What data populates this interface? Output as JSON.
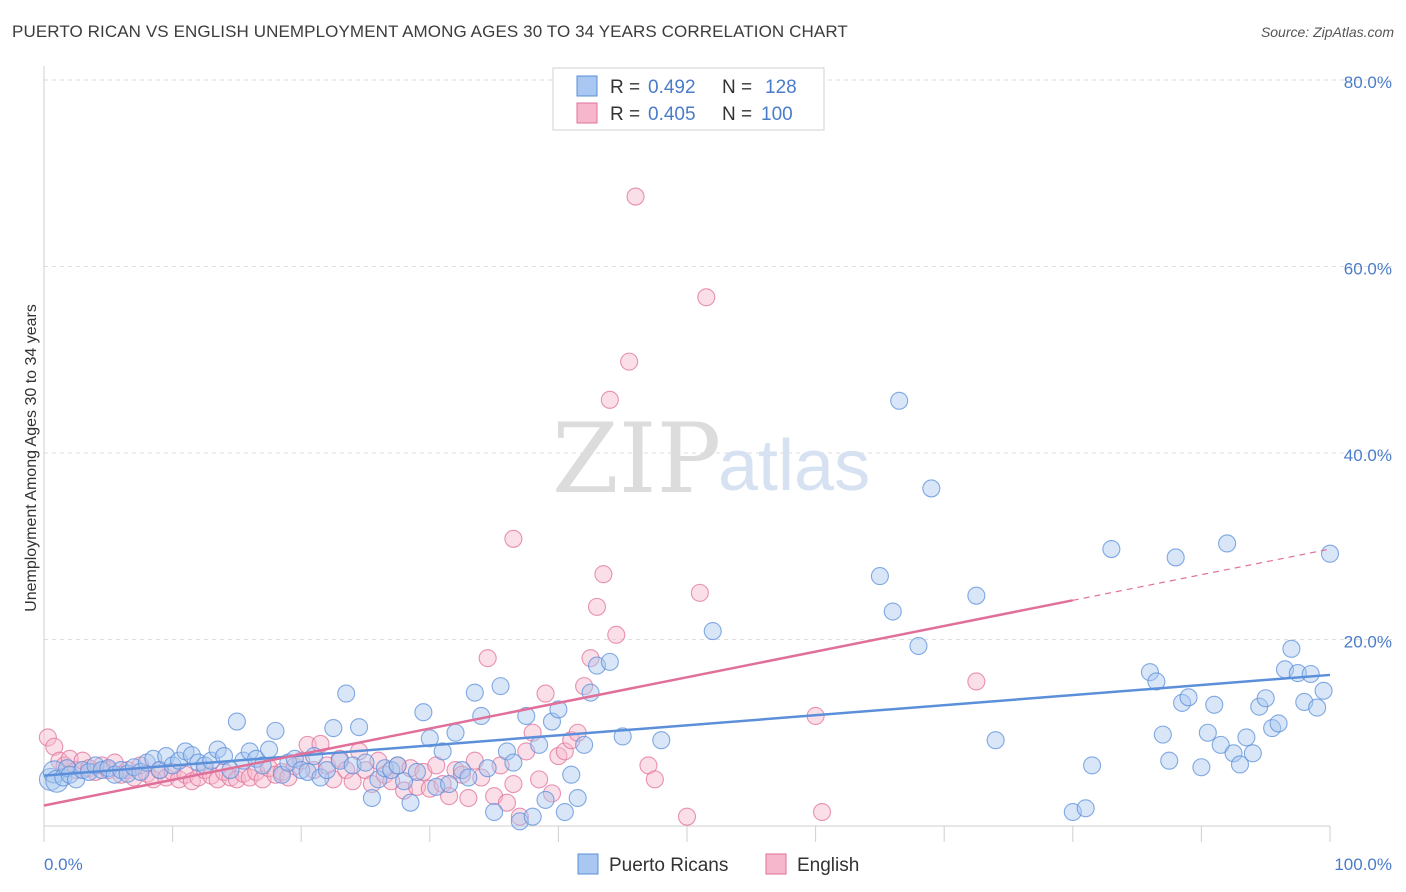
{
  "title": "PUERTO RICAN VS ENGLISH UNEMPLOYMENT AMONG AGES 30 TO 34 YEARS CORRELATION CHART",
  "source": "Source: ZipAtlas.com",
  "watermark": {
    "zip": "ZIP",
    "atlas": "atlas"
  },
  "legend_top": [
    {
      "r_label": "R =",
      "r_value": "0.492",
      "n_label": "N =",
      "n_value": "128"
    },
    {
      "r_label": "R =",
      "r_value": "0.405",
      "n_label": "N =",
      "n_value": "100"
    }
  ],
  "chart_data": {
    "type": "scatter",
    "xlabel": "",
    "ylabel": "Unemployment Among Ages 30 to 34 years",
    "xlim": [
      0,
      100
    ],
    "ylim": [
      0,
      80
    ],
    "x_tick_labels": [
      "0.0%",
      "100.0%"
    ],
    "y_ticks": [
      20,
      40,
      60,
      80
    ],
    "y_tick_labels": [
      "20.0%",
      "40.0%",
      "60.0%",
      "80.0%"
    ],
    "grid": true,
    "legend_position": "bottom",
    "series": [
      {
        "name": "Puerto Ricans",
        "color": "#5b8fd9",
        "fill": "#a9c7f0",
        "trend": {
          "x0": 0,
          "y0": 5.4,
          "x1": 100,
          "y1": 16.2,
          "dashed_from": null
        },
        "points": [
          [
            0.5,
            5.0
          ],
          [
            0.8,
            5.8
          ],
          [
            1.0,
            4.8
          ],
          [
            1.5,
            5.2
          ],
          [
            1.8,
            6.2
          ],
          [
            2.0,
            5.5
          ],
          [
            2.5,
            5.0
          ],
          [
            3.0,
            6.0
          ],
          [
            3.5,
            5.8
          ],
          [
            4.0,
            6.5
          ],
          [
            4.5,
            6.0
          ],
          [
            5.0,
            6.2
          ],
          [
            5.5,
            5.5
          ],
          [
            6.0,
            6.0
          ],
          [
            6.5,
            5.6
          ],
          [
            7.0,
            6.3
          ],
          [
            7.5,
            5.8
          ],
          [
            8.0,
            6.8
          ],
          [
            8.5,
            7.2
          ],
          [
            9.0,
            6.0
          ],
          [
            9.5,
            7.5
          ],
          [
            10.0,
            6.5
          ],
          [
            10.5,
            7.0
          ],
          [
            11.0,
            8.0
          ],
          [
            11.5,
            7.6
          ],
          [
            12.0,
            6.8
          ],
          [
            12.5,
            6.5
          ],
          [
            13.0,
            7.0
          ],
          [
            13.5,
            8.2
          ],
          [
            14.0,
            7.5
          ],
          [
            14.5,
            6.0
          ],
          [
            15.0,
            11.2
          ],
          [
            15.5,
            7.0
          ],
          [
            16.0,
            8.0
          ],
          [
            16.5,
            7.2
          ],
          [
            17.0,
            6.5
          ],
          [
            17.5,
            8.2
          ],
          [
            18.0,
            10.2
          ],
          [
            18.5,
            5.5
          ],
          [
            19.0,
            6.8
          ],
          [
            19.5,
            7.2
          ],
          [
            20.0,
            6.0
          ],
          [
            20.5,
            5.8
          ],
          [
            21.0,
            7.5
          ],
          [
            21.5,
            5.2
          ],
          [
            22.0,
            6.0
          ],
          [
            22.5,
            10.5
          ],
          [
            23.0,
            7.0
          ],
          [
            23.5,
            14.2
          ],
          [
            24.0,
            6.5
          ],
          [
            24.5,
            10.6
          ],
          [
            25.0,
            6.8
          ],
          [
            25.5,
            3.0
          ],
          [
            26.0,
            5.0
          ],
          [
            26.5,
            6.2
          ],
          [
            27.0,
            6.0
          ],
          [
            27.5,
            6.5
          ],
          [
            28.0,
            4.8
          ],
          [
            28.5,
            2.5
          ],
          [
            29.0,
            5.8
          ],
          [
            29.5,
            12.2
          ],
          [
            30.0,
            9.4
          ],
          [
            30.5,
            4.2
          ],
          [
            31.0,
            8.0
          ],
          [
            31.5,
            4.5
          ],
          [
            32.0,
            10.0
          ],
          [
            32.5,
            6.0
          ],
          [
            33.0,
            5.2
          ],
          [
            33.5,
            14.3
          ],
          [
            34.0,
            11.8
          ],
          [
            34.5,
            6.2
          ],
          [
            35.0,
            1.5
          ],
          [
            35.5,
            15.0
          ],
          [
            36.0,
            8.0
          ],
          [
            36.5,
            6.8
          ],
          [
            37.0,
            0.5
          ],
          [
            37.5,
            11.8
          ],
          [
            38.0,
            1.0
          ],
          [
            38.5,
            8.7
          ],
          [
            39.0,
            2.8
          ],
          [
            39.5,
            11.2
          ],
          [
            40.0,
            12.5
          ],
          [
            40.5,
            1.5
          ],
          [
            41.0,
            5.5
          ],
          [
            41.5,
            3.0
          ],
          [
            42.0,
            8.7
          ],
          [
            42.5,
            14.3
          ],
          [
            43.0,
            17.2
          ],
          [
            44.0,
            17.6
          ],
          [
            45.0,
            9.6
          ],
          [
            48.0,
            9.2
          ],
          [
            52.0,
            20.9
          ],
          [
            65.0,
            26.8
          ],
          [
            66.0,
            23.0
          ],
          [
            66.5,
            45.6
          ],
          [
            68.0,
            19.3
          ],
          [
            69.0,
            36.2
          ],
          [
            72.5,
            24.7
          ],
          [
            74.0,
            9.2
          ],
          [
            80.0,
            1.5
          ],
          [
            81.0,
            1.9
          ],
          [
            81.5,
            6.5
          ],
          [
            83.0,
            29.7
          ],
          [
            86.0,
            16.5
          ],
          [
            86.5,
            15.5
          ],
          [
            87.0,
            9.8
          ],
          [
            87.5,
            7.0
          ],
          [
            88.0,
            28.8
          ],
          [
            88.5,
            13.2
          ],
          [
            89.0,
            13.8
          ],
          [
            90.0,
            6.3
          ],
          [
            90.5,
            10.0
          ],
          [
            91.0,
            13.0
          ],
          [
            91.5,
            8.7
          ],
          [
            92.0,
            30.3
          ],
          [
            92.5,
            7.8
          ],
          [
            93.0,
            6.6
          ],
          [
            93.5,
            9.5
          ],
          [
            94.0,
            7.8
          ],
          [
            94.5,
            12.8
          ],
          [
            95.0,
            13.7
          ],
          [
            95.5,
            10.5
          ],
          [
            96.0,
            11.0
          ],
          [
            96.5,
            16.8
          ],
          [
            97.0,
            19.0
          ],
          [
            97.5,
            16.4
          ],
          [
            98.0,
            13.3
          ],
          [
            98.5,
            16.3
          ],
          [
            99.0,
            12.7
          ],
          [
            99.5,
            14.5
          ],
          [
            100.0,
            29.2
          ]
        ]
      },
      {
        "name": "English",
        "color": "#e0709a",
        "fill": "#f6b7cd",
        "trend": {
          "x0": 0,
          "y0": 2.2,
          "x1": 100,
          "y1": 29.7,
          "dashed_from": 80
        },
        "points": [
          [
            0.3,
            9.5
          ],
          [
            0.8,
            8.5
          ],
          [
            1.2,
            7.0
          ],
          [
            1.6,
            6.5
          ],
          [
            2.0,
            7.2
          ],
          [
            2.5,
            6.0
          ],
          [
            3.0,
            7.0
          ],
          [
            3.5,
            6.2
          ],
          [
            4.0,
            5.8
          ],
          [
            4.5,
            6.5
          ],
          [
            5.0,
            6.0
          ],
          [
            5.5,
            6.8
          ],
          [
            6.0,
            5.5
          ],
          [
            6.5,
            6.0
          ],
          [
            7.0,
            5.2
          ],
          [
            7.5,
            6.5
          ],
          [
            8.0,
            5.6
          ],
          [
            8.5,
            5.0
          ],
          [
            9.0,
            6.0
          ],
          [
            9.5,
            5.2
          ],
          [
            10.0,
            5.8
          ],
          [
            10.5,
            5.0
          ],
          [
            11.0,
            5.5
          ],
          [
            11.5,
            4.8
          ],
          [
            12.0,
            5.2
          ],
          [
            12.5,
            6.0
          ],
          [
            13.0,
            5.4
          ],
          [
            13.5,
            5.0
          ],
          [
            14.0,
            5.8
          ],
          [
            14.5,
            5.2
          ],
          [
            15.0,
            5.0
          ],
          [
            15.5,
            5.6
          ],
          [
            16.0,
            5.2
          ],
          [
            16.5,
            5.8
          ],
          [
            17.0,
            5.0
          ],
          [
            17.5,
            6.2
          ],
          [
            18.0,
            5.5
          ],
          [
            18.5,
            5.8
          ],
          [
            19.0,
            5.2
          ],
          [
            19.5,
            6.4
          ],
          [
            20.0,
            7.0
          ],
          [
            20.5,
            8.7
          ],
          [
            21.0,
            6.0
          ],
          [
            21.5,
            8.8
          ],
          [
            22.0,
            6.5
          ],
          [
            22.5,
            5.0
          ],
          [
            23.0,
            7.2
          ],
          [
            23.5,
            6.0
          ],
          [
            24.0,
            4.8
          ],
          [
            24.5,
            8.0
          ],
          [
            25.0,
            6.0
          ],
          [
            25.5,
            4.5
          ],
          [
            26.0,
            7.0
          ],
          [
            26.5,
            5.5
          ],
          [
            27.0,
            4.8
          ],
          [
            27.5,
            6.5
          ],
          [
            28.0,
            3.8
          ],
          [
            28.5,
            6.2
          ],
          [
            29.0,
            4.2
          ],
          [
            29.5,
            5.8
          ],
          [
            30.0,
            4.0
          ],
          [
            30.5,
            6.5
          ],
          [
            31.0,
            4.5
          ],
          [
            31.5,
            3.2
          ],
          [
            32.0,
            6.0
          ],
          [
            32.5,
            5.5
          ],
          [
            33.0,
            3.0
          ],
          [
            33.5,
            7.0
          ],
          [
            34.0,
            5.2
          ],
          [
            34.5,
            18.0
          ],
          [
            35.0,
            3.2
          ],
          [
            35.5,
            6.5
          ],
          [
            36.0,
            2.5
          ],
          [
            36.5,
            4.5
          ],
          [
            37.0,
            1.0
          ],
          [
            37.5,
            8.0
          ],
          [
            38.0,
            10.0
          ],
          [
            38.5,
            5.0
          ],
          [
            39.0,
            14.2
          ],
          [
            39.5,
            3.5
          ],
          [
            40.0,
            7.5
          ],
          [
            40.5,
            8.0
          ],
          [
            41.0,
            9.2
          ],
          [
            41.5,
            10.0
          ],
          [
            42.0,
            15.0
          ],
          [
            42.5,
            18.0
          ],
          [
            43.0,
            23.5
          ],
          [
            43.5,
            27.0
          ],
          [
            44.0,
            45.7
          ],
          [
            44.5,
            20.5
          ],
          [
            45.5,
            49.8
          ],
          [
            46.0,
            67.5
          ],
          [
            47.0,
            6.5
          ],
          [
            47.5,
            5.0
          ],
          [
            50.0,
            1.0
          ],
          [
            51.0,
            25.0
          ],
          [
            51.5,
            56.7
          ],
          [
            60.0,
            11.8
          ],
          [
            60.5,
            1.5
          ],
          [
            72.5,
            15.5
          ],
          [
            36.5,
            30.8
          ]
        ]
      }
    ]
  }
}
